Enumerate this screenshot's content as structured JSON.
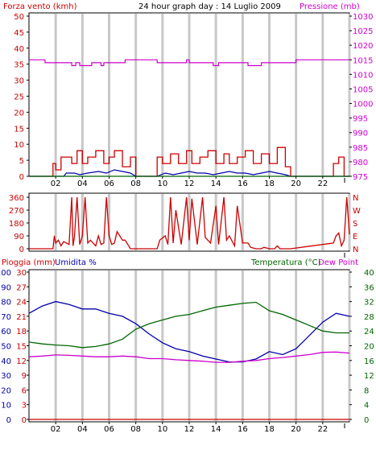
{
  "colors": {
    "wind": "#cc0000",
    "wind_avg": "#0000aa",
    "pressure": "#cc00cc",
    "humidity": "#0000aa",
    "temperature": "#006600",
    "dew_point": "#cc00cc",
    "rain": "#cc0000",
    "grid": "#c8c8c8",
    "frame": "#000000"
  },
  "chart_data": [
    {
      "id": "wind_pressure",
      "type": "line",
      "title": "24 hour graph day : 14 Luglio 2009",
      "left_axis_label": "Forza vento (kmh)",
      "right_axis_label": "Pressione (mb)",
      "x_ticks": [
        "02",
        "04",
        "06",
        "08",
        "10",
        "12",
        "14",
        "16",
        "18",
        "20",
        "22"
      ],
      "left_ticks": [
        "0",
        "5",
        "10",
        "15",
        "20",
        "25",
        "30",
        "35",
        "40",
        "45",
        "50"
      ],
      "left_lim": [
        0,
        50
      ],
      "right_ticks": [
        "975",
        "980",
        "985",
        "990",
        "995",
        "1000",
        "1005",
        "1010",
        "1015",
        "1020",
        "1025",
        "1030"
      ],
      "right_lim": [
        975,
        1030
      ],
      "grid": true,
      "series": [
        {
          "key": "pressure",
          "color": "#cc00cc",
          "x": [
            0,
            1.2,
            1.2,
            3.2,
            3.2,
            3.5,
            3.5,
            3.8,
            3.8,
            4.7,
            4.7,
            5.4,
            5.4,
            5.6,
            5.6,
            7.2,
            7.2,
            9.6,
            9.6,
            11.8,
            11.8,
            12.0,
            12.0,
            13.8,
            13.8,
            14.2,
            14.2,
            16.4,
            16.4,
            17.4,
            17.4,
            20.0,
            20.0,
            24.0
          ],
          "y": [
            1015,
            1015,
            1014,
            1014,
            1013,
            1013,
            1014,
            1014,
            1013,
            1013,
            1014,
            1014,
            1013,
            1013,
            1014,
            1014,
            1015,
            1015,
            1014,
            1014,
            1015,
            1015,
            1014,
            1014,
            1013,
            1013,
            1014,
            1014,
            1013,
            1013,
            1014,
            1014,
            1015,
            1015
          ]
        },
        {
          "key": "wind",
          "color": "#cc0000",
          "x": [
            0,
            1.8,
            1.8,
            2.0,
            2.0,
            2.4,
            2.4,
            3.2,
            3.2,
            3.6,
            3.6,
            4.0,
            4.0,
            4.4,
            4.4,
            5.0,
            5.0,
            5.6,
            5.6,
            6.0,
            6.0,
            6.4,
            6.4,
            7.0,
            7.0,
            7.6,
            7.6,
            8.0,
            8.0,
            9.6,
            9.6,
            10.0,
            10.0,
            10.6,
            10.6,
            11.2,
            11.2,
            11.8,
            11.8,
            12.2,
            12.2,
            12.8,
            12.8,
            13.4,
            13.4,
            14.0,
            14.0,
            14.6,
            14.6,
            15.0,
            15.0,
            15.6,
            15.6,
            16.2,
            16.2,
            16.8,
            16.8,
            17.4,
            17.4,
            18.0,
            18.0,
            18.6,
            18.6,
            19.2,
            19.2,
            19.6,
            19.6,
            22.8,
            22.8,
            23.2,
            23.2,
            23.6,
            23.6,
            24.0
          ],
          "y": [
            0,
            0,
            4,
            4,
            2,
            2,
            6,
            6,
            4,
            4,
            8,
            8,
            4,
            4,
            6,
            6,
            8,
            8,
            4,
            4,
            6,
            6,
            8,
            8,
            3,
            3,
            6,
            6,
            0,
            0,
            6,
            6,
            4,
            4,
            7,
            7,
            4,
            4,
            8,
            8,
            4,
            4,
            6,
            6,
            8,
            8,
            4,
            4,
            7,
            7,
            4,
            4,
            6,
            6,
            8,
            8,
            4,
            4,
            7,
            7,
            4,
            4,
            9,
            9,
            3,
            3,
            0,
            0,
            4,
            4,
            6,
            6,
            0,
            0
          ]
        },
        {
          "key": "wind_avg",
          "color": "#0000aa",
          "x": [
            0,
            2.6,
            2.8,
            3.4,
            3.8,
            4.4,
            5.2,
            5.8,
            6.4,
            7.0,
            7.6,
            8.0,
            9.6,
            10.2,
            10.8,
            11.4,
            12.0,
            12.6,
            13.2,
            13.8,
            14.4,
            15.0,
            15.6,
            16.2,
            16.8,
            17.4,
            18.0,
            18.6,
            19.2,
            19.6,
            24.0
          ],
          "y": [
            0,
            0,
            1,
            1,
            0.5,
            1,
            1.5,
            1,
            2,
            1.5,
            1,
            0,
            0,
            1,
            0.5,
            1,
            1.5,
            1,
            1,
            0.5,
            1,
            1.5,
            1,
            1,
            0.5,
            1,
            1.5,
            1,
            0.5,
            0,
            0
          ]
        },
        {
          "key": "wind_zero",
          "color": "#006600",
          "x": [
            0,
            24
          ],
          "y": [
            0,
            0
          ]
        }
      ]
    },
    {
      "id": "direction",
      "type": "line",
      "left_ticks": [
        "0",
        "90",
        "180",
        "270",
        "360"
      ],
      "left_lim": [
        0,
        360
      ],
      "right_ticks": [
        "N",
        "E",
        "S",
        "W",
        "N"
      ],
      "grid": true,
      "series": [
        {
          "key": "direction",
          "color": "#cc0000",
          "x": [
            0,
            1.8,
            1.9,
            2.0,
            2.2,
            2.4,
            2.6,
            3.0,
            3.2,
            3.3,
            3.4,
            3.6,
            3.8,
            4.0,
            4.2,
            4.4,
            4.6,
            5.0,
            5.2,
            5.4,
            5.6,
            5.8,
            6.0,
            6.2,
            6.4,
            6.6,
            7.0,
            7.2,
            7.6,
            9.6,
            9.8,
            10.2,
            10.4,
            10.6,
            10.8,
            11.0,
            11.4,
            11.8,
            12.0,
            12.2,
            12.6,
            13.0,
            13.2,
            13.6,
            14.0,
            14.2,
            14.6,
            14.8,
            15.0,
            15.4,
            15.6,
            16.0,
            16.4,
            16.6,
            17.0,
            17.4,
            17.6,
            18.0,
            18.4,
            18.6,
            18.8,
            19.0,
            19.2,
            19.6,
            22.8,
            23.0,
            23.2,
            23.4,
            23.6,
            23.8,
            24.0
          ],
          "y": [
            0,
            0,
            90,
            40,
            60,
            20,
            50,
            30,
            360,
            20,
            80,
            360,
            30,
            90,
            360,
            40,
            60,
            20,
            90,
            30,
            40,
            360,
            90,
            30,
            40,
            120,
            60,
            60,
            0,
            0,
            60,
            90,
            30,
            360,
            40,
            270,
            30,
            360,
            60,
            350,
            30,
            360,
            80,
            40,
            300,
            30,
            360,
            60,
            90,
            20,
            300,
            40,
            40,
            10,
            0,
            0,
            10,
            0,
            0,
            20,
            0,
            0,
            0,
            0,
            40,
            90,
            110,
            20,
            60,
            360,
            100
          ]
        }
      ]
    },
    {
      "id": "rain_humidity_temp",
      "type": "line",
      "left_axis_label": "Pioggia (mm)",
      "left_axis_label2": "Umidita %",
      "right_axis_label": "Temperatura (°C)",
      "right_axis_label2": "Dew Point",
      "rain_ticks": [
        "0",
        "3",
        "6",
        "9",
        "12",
        "15",
        "18",
        "21",
        "24",
        "27",
        "30"
      ],
      "humidity_ticks": [
        "0",
        "10",
        "20",
        "30",
        "40",
        "50",
        "60",
        "70",
        "80",
        "90",
        "100"
      ],
      "humidity_lim": [
        0,
        100
      ],
      "temp_ticks": [
        "0",
        "4",
        "8",
        "12",
        "16",
        "20",
        "24",
        "28",
        "32",
        "36",
        "40"
      ],
      "temp_lim": [
        0,
        40
      ],
      "x_ticks": [
        "02",
        "04",
        "06",
        "08",
        "10",
        "12",
        "14",
        "16",
        "18",
        "20",
        "22"
      ],
      "grid": true,
      "series": [
        {
          "key": "humidity",
          "color": "#0000aa",
          "x": [
            0,
            1,
            2,
            3,
            4,
            5,
            6,
            7,
            8,
            9,
            10,
            11,
            12,
            13,
            14,
            15,
            16,
            17,
            18,
            19,
            20,
            21,
            22,
            23,
            24
          ],
          "y": [
            72,
            77,
            80,
            78,
            75,
            75,
            72,
            70,
            65,
            58,
            52,
            48,
            46,
            43,
            41,
            39,
            39,
            41,
            46,
            44,
            48,
            57,
            66,
            72,
            70
          ]
        },
        {
          "key": "temperature",
          "color": "#006600",
          "x": [
            0,
            1,
            2,
            3,
            4,
            5,
            6,
            7,
            8,
            9,
            10,
            11,
            12,
            13,
            14,
            15,
            16,
            17,
            18,
            19,
            20,
            21,
            22,
            23,
            24
          ],
          "y": [
            21,
            20.5,
            20.2,
            20,
            19.5,
            19.8,
            20.5,
            21.8,
            24.5,
            26,
            27,
            28,
            28.5,
            29.5,
            30.5,
            31,
            31.5,
            31.8,
            29.5,
            28.5,
            27,
            25.5,
            24,
            23.5,
            23.5
          ]
        },
        {
          "key": "dew_point",
          "color": "#cc00cc",
          "x": [
            0,
            1,
            2,
            3,
            4,
            5,
            6,
            7,
            8,
            9,
            10,
            11,
            12,
            13,
            14,
            15,
            16,
            17,
            18,
            19,
            20,
            21,
            22,
            23,
            24
          ],
          "y": [
            17,
            17.2,
            17.5,
            17.4,
            17.2,
            17,
            17,
            17.2,
            17,
            16.5,
            16.5,
            16.2,
            16,
            15.8,
            15.5,
            15.5,
            15.8,
            16,
            16.5,
            16.8,
            17.2,
            17.6,
            18.2,
            18.3,
            18
          ]
        },
        {
          "key": "rain",
          "color": "#cc0000",
          "x": [
            0,
            24
          ],
          "y": [
            0,
            0
          ]
        }
      ]
    }
  ]
}
